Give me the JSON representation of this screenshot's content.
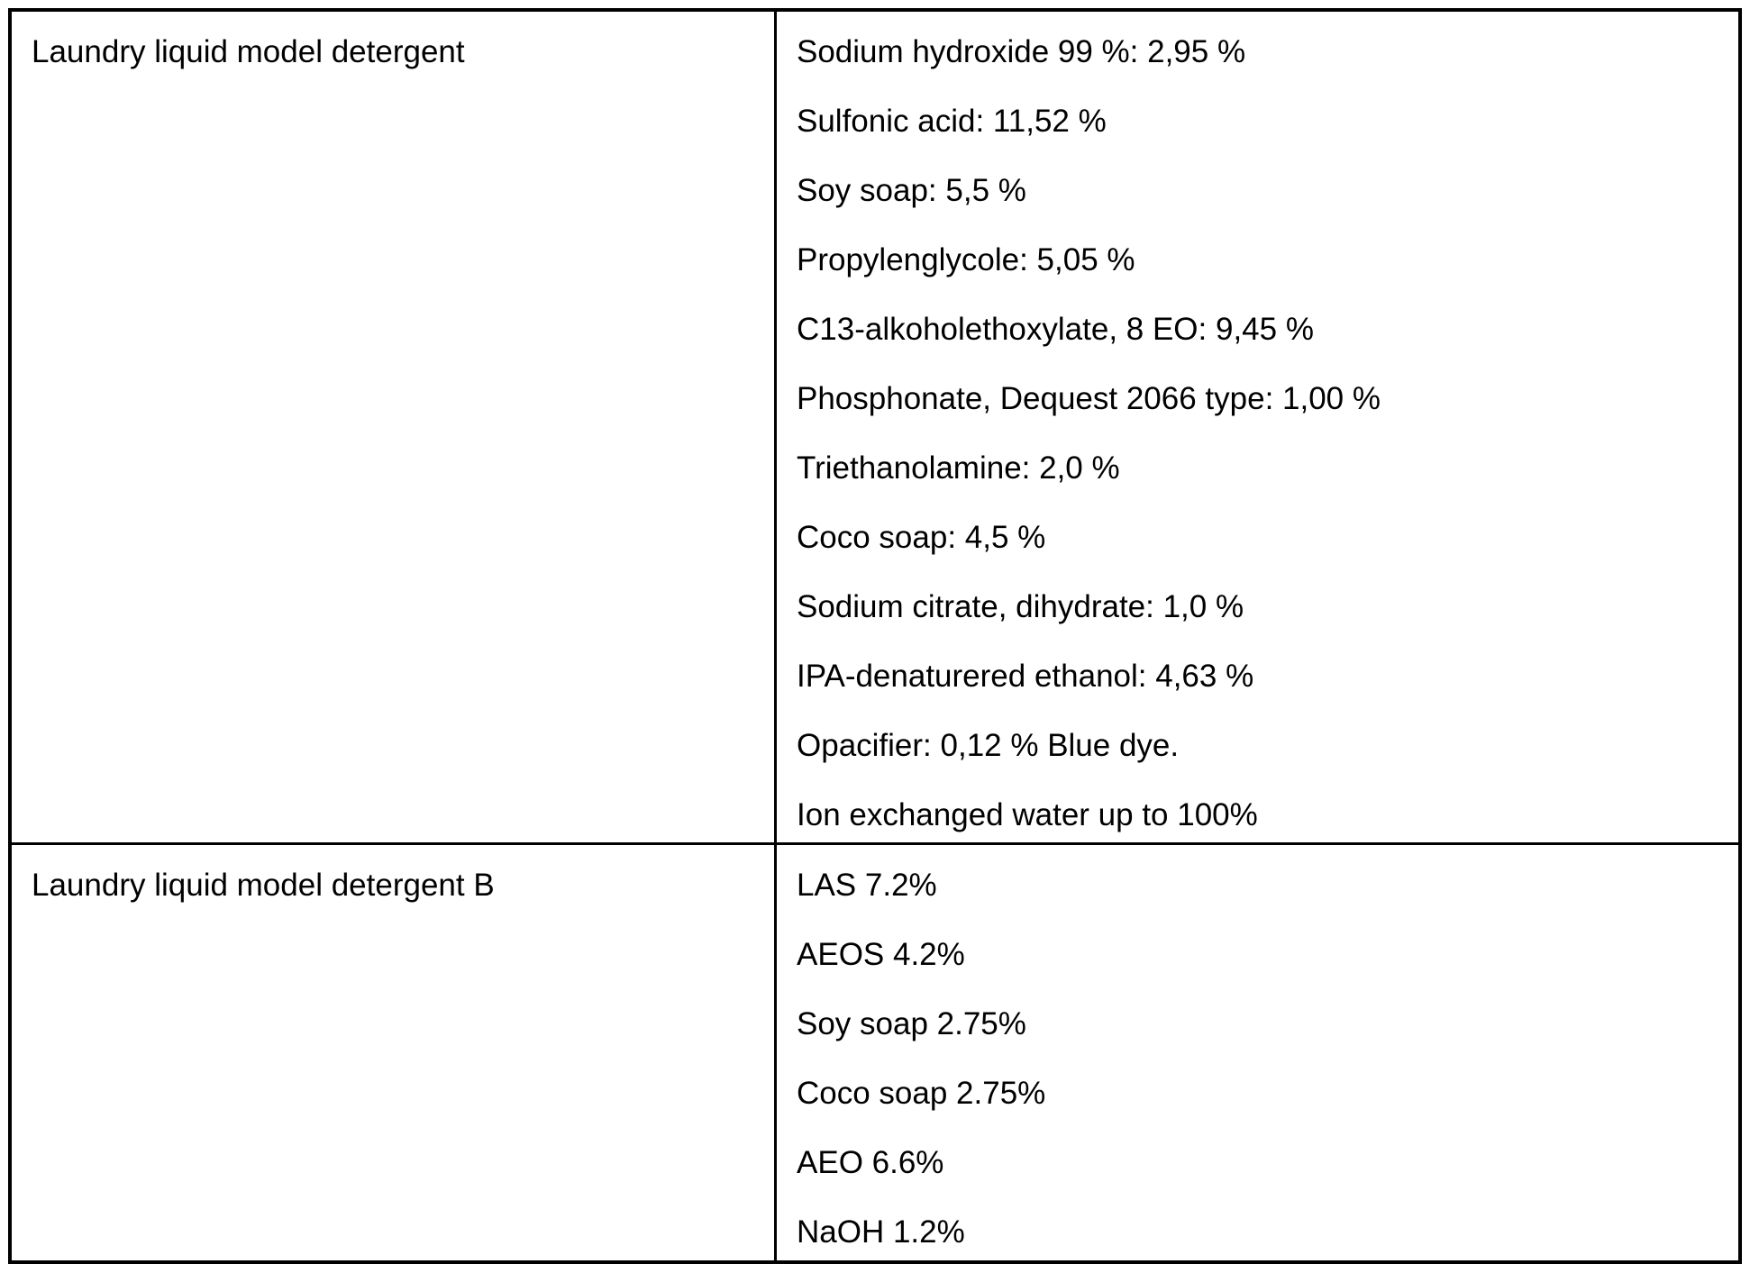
{
  "colors": {
    "border": "#000000",
    "text": "#000000",
    "background": "#ffffff"
  },
  "table": {
    "rows": [
      {
        "label": "Laundry liquid model detergent",
        "ingredients": [
          "Sodium hydroxide 99 %: 2,95 %",
          "Sulfonic acid: 11,52 %",
          "Soy soap: 5,5 %",
          "Propylenglycole: 5,05 %",
          "C13-alkoholethoxylate, 8 EO: 9,45 %",
          "Phosphonate, Dequest 2066 type: 1,00 %",
          "Triethanolamine: 2,0 %",
          "Coco soap: 4,5 %",
          "Sodium citrate, dihydrate: 1,0 %",
          "IPA-denaturered ethanol: 4,63 %",
          "Opacifier: 0,12 % Blue dye.",
          "Ion exchanged water up to 100%"
        ]
      },
      {
        "label": "Laundry liquid model detergent B",
        "ingredients": [
          "LAS 7.2%",
          "AEOS 4.2%",
          "Soy soap 2.75%",
          "Coco soap 2.75%",
          "AEO 6.6%",
          "NaOH 1.2%"
        ]
      }
    ]
  }
}
